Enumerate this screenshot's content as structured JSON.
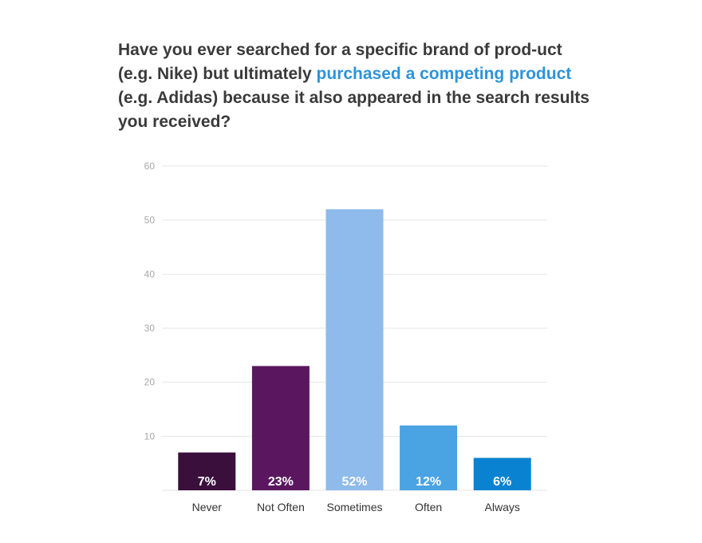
{
  "title": {
    "part1": "Have you ever searched for a specific brand of prod-uct (e.g. Nike) but ultimately ",
    "highlight": "purchased a competing product",
    "part2": " (e.g. Adidas) because it also appeared in the search results you received?",
    "highlight_color": "#2e93d9"
  },
  "chart_data": {
    "type": "bar",
    "categories": [
      "Never",
      "Not Often",
      "Sometimes",
      "Often",
      "Always"
    ],
    "values": [
      7,
      23,
      52,
      12,
      6
    ],
    "data_labels": [
      "7%",
      "23%",
      "52%",
      "12%",
      "6%"
    ],
    "colors": [
      "#3a0f3c",
      "#5a1760",
      "#8ebaec",
      "#4aa3e2",
      "#0a82d2"
    ],
    "y_ticks": [
      "10",
      "20",
      "30",
      "40",
      "50",
      "60"
    ],
    "ylim": [
      0,
      60
    ],
    "grid": true,
    "gridline_color": "#e6e6e6"
  }
}
